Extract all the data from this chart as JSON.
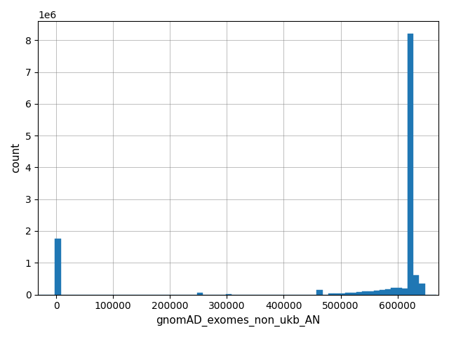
{
  "xlabel": "gnomAD_exomes_non_ukb_AN",
  "ylabel": "count",
  "bar_color": "#1f77b4",
  "xlim": [
    -32000,
    672000
  ],
  "ylim": [
    0,
    8600000
  ],
  "ytick_values": [
    0,
    1000000,
    2000000,
    3000000,
    4000000,
    5000000,
    6000000,
    7000000,
    8000000
  ],
  "xtick_values": [
    0,
    100000,
    200000,
    300000,
    400000,
    500000,
    600000
  ],
  "grid": true,
  "bin_edges": [
    -32000,
    -22000,
    -12000,
    -2000,
    8000,
    18000,
    28000,
    38000,
    48000,
    58000,
    68000,
    78000,
    88000,
    98000,
    108000,
    118000,
    128000,
    138000,
    148000,
    158000,
    168000,
    178000,
    188000,
    198000,
    208000,
    218000,
    228000,
    238000,
    248000,
    258000,
    268000,
    278000,
    288000,
    298000,
    308000,
    318000,
    328000,
    338000,
    348000,
    358000,
    368000,
    378000,
    388000,
    398000,
    408000,
    418000,
    428000,
    438000,
    448000,
    458000,
    468000,
    478000,
    488000,
    498000,
    508000,
    518000,
    528000,
    538000,
    548000,
    558000,
    568000,
    578000,
    588000,
    598000,
    608000,
    618000,
    628000,
    638000,
    648000,
    658000
  ],
  "counts": [
    0,
    0,
    0,
    1750000,
    0,
    0,
    0,
    0,
    0,
    0,
    0,
    0,
    0,
    0,
    0,
    0,
    0,
    0,
    0,
    0,
    0,
    0,
    0,
    0,
    0,
    0,
    0,
    0,
    55000,
    0,
    0,
    0,
    0,
    15000,
    0,
    0,
    0,
    0,
    0,
    0,
    0,
    0,
    0,
    0,
    0,
    0,
    0,
    0,
    0,
    150000,
    0,
    25000,
    30000,
    35000,
    45000,
    55000,
    70000,
    90000,
    110000,
    130000,
    155000,
    175000,
    200000,
    210000,
    190000,
    8200000,
    600000,
    350000,
    0,
    0
  ],
  "bin_width": 10000
}
